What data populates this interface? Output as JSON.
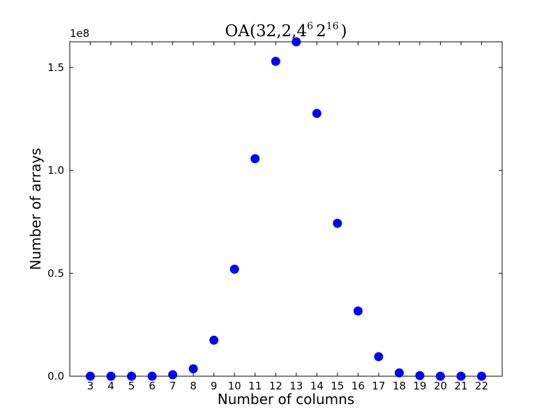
{
  "chart_data": {
    "type": "scatter",
    "title": {
      "prefix": "OA(32,2,4",
      "sup1": "6",
      "mid": "2",
      "sup2": "16",
      "suffix": ")"
    },
    "xlabel": "Number of columns",
    "ylabel": "Number of arrays",
    "y_offset_label": "1e8",
    "x": [
      3,
      4,
      5,
      6,
      7,
      8,
      9,
      10,
      11,
      12,
      13,
      14,
      15,
      16,
      17,
      18,
      19,
      20,
      21,
      22
    ],
    "y": [
      0,
      0,
      0,
      0,
      700000,
      3600000,
      17500000,
      52000000,
      105700000,
      153000000,
      162500000,
      127700000,
      74300000,
      31700000,
      9500000,
      1600000,
      300000,
      0,
      0,
      0
    ],
    "xlim": [
      2,
      23
    ],
    "ylim": [
      0,
      162500000
    ],
    "yticks": [
      0,
      50000000,
      100000000,
      150000000
    ],
    "ytick_labels": [
      "0.0",
      "0.5",
      "1.0",
      "1.5"
    ],
    "xticks": [
      3,
      4,
      5,
      6,
      7,
      8,
      9,
      10,
      11,
      12,
      13,
      14,
      15,
      16,
      17,
      18,
      19,
      20,
      21,
      22
    ],
    "xtick_labels": [
      "3",
      "4",
      "5",
      "6",
      "7",
      "8",
      "9",
      "10",
      "11",
      "12",
      "13",
      "14",
      "15",
      "16",
      "17",
      "18",
      "19",
      "20",
      "21",
      "22"
    ],
    "marker_color": "#0000ff",
    "grid": false
  }
}
